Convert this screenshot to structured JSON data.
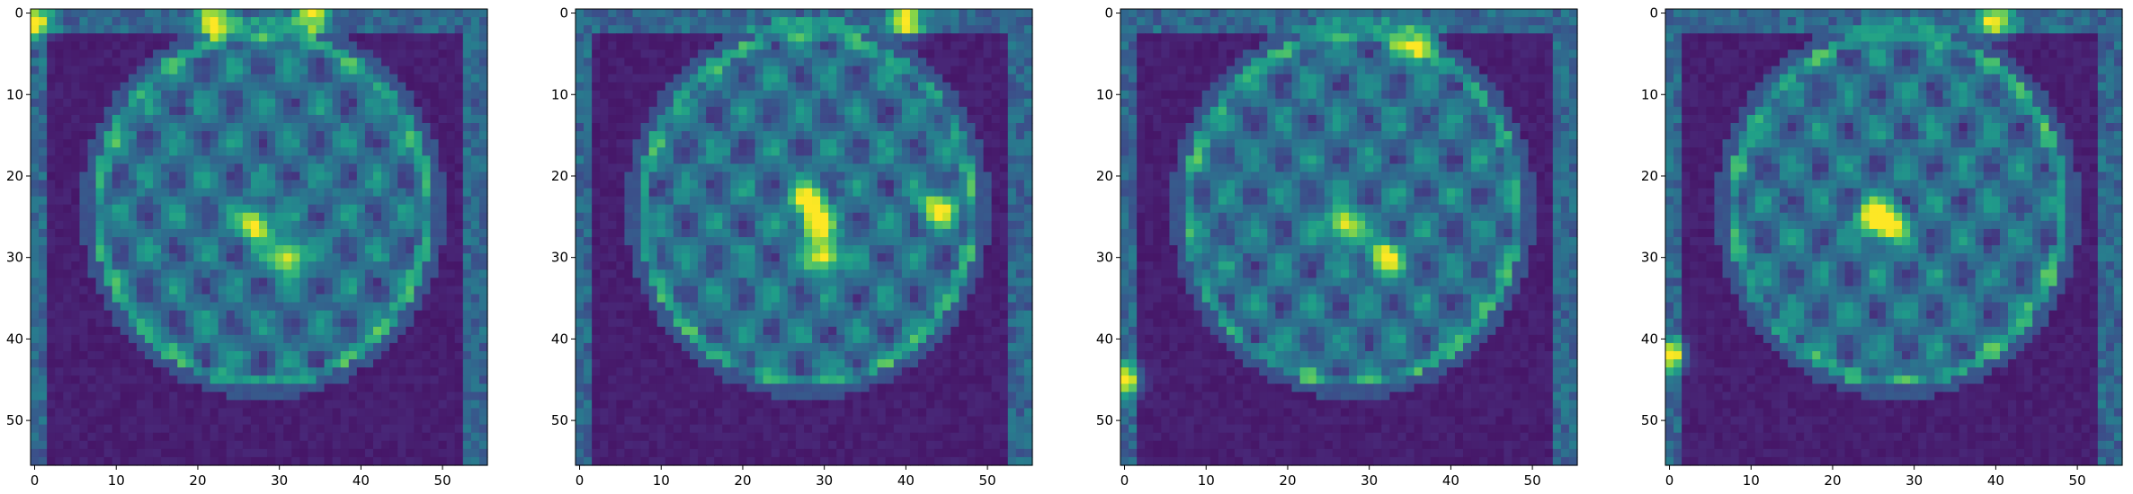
{
  "chart_data": [
    {
      "type": "heatmap",
      "colormap": "viridis",
      "grid": false,
      "xlim": [
        -0.5,
        55.5
      ],
      "ylim": [
        55.5,
        -0.5
      ],
      "xticks": [
        0,
        10,
        20,
        30,
        40,
        50
      ],
      "xtick_labels": [
        "0",
        "10",
        "20",
        "30",
        "40",
        "50"
      ],
      "yticks": [
        0,
        10,
        20,
        30,
        40,
        50
      ],
      "ytick_labels": [
        "0",
        "10",
        "20",
        "30",
        "40",
        "50"
      ],
      "image_size": [
        56,
        56
      ],
      "hotspots": [
        {
          "x": 27,
          "y": 26
        },
        {
          "x": 31,
          "y": 30
        },
        {
          "x": 22,
          "y": 1
        },
        {
          "x": 34,
          "y": 0
        },
        {
          "x": 0,
          "y": 1
        }
      ]
    },
    {
      "type": "heatmap",
      "colormap": "viridis",
      "grid": false,
      "xlim": [
        -0.5,
        55.5
      ],
      "ylim": [
        55.5,
        -0.5
      ],
      "xticks": [
        0,
        10,
        20,
        30,
        40,
        50
      ],
      "xtick_labels": [
        "0",
        "10",
        "20",
        "30",
        "40",
        "50"
      ],
      "yticks": [
        0,
        10,
        20,
        30,
        40,
        50
      ],
      "ytick_labels": [
        "0",
        "10",
        "20",
        "30",
        "40",
        "50"
      ],
      "image_size": [
        56,
        56
      ],
      "hotspots": [
        {
          "x": 28,
          "y": 23
        },
        {
          "x": 29,
          "y": 26
        },
        {
          "x": 30,
          "y": 30
        },
        {
          "x": 44,
          "y": 24
        },
        {
          "x": 40,
          "y": 1
        }
      ]
    },
    {
      "type": "heatmap",
      "colormap": "viridis",
      "grid": false,
      "xlim": [
        -0.5,
        55.5
      ],
      "ylim": [
        55.5,
        -0.5
      ],
      "xticks": [
        0,
        10,
        20,
        30,
        40,
        50
      ],
      "xtick_labels": [
        "0",
        "10",
        "20",
        "30",
        "40",
        "50"
      ],
      "yticks": [
        0,
        10,
        20,
        30,
        40,
        50
      ],
      "ytick_labels": [
        "0",
        "10",
        "20",
        "30",
        "40",
        "50"
      ],
      "image_size": [
        56,
        56
      ],
      "hotspots": [
        {
          "x": 27,
          "y": 26
        },
        {
          "x": 36,
          "y": 4
        },
        {
          "x": 32,
          "y": 30
        },
        {
          "x": 0,
          "y": 45
        }
      ]
    },
    {
      "type": "heatmap",
      "colormap": "viridis",
      "grid": false,
      "xlim": [
        -0.5,
        55.5
      ],
      "ylim": [
        55.5,
        -0.5
      ],
      "xticks": [
        0,
        10,
        20,
        30,
        40,
        50
      ],
      "xtick_labels": [
        "0",
        "10",
        "20",
        "30",
        "40",
        "50"
      ],
      "yticks": [
        0,
        10,
        20,
        30,
        40,
        50
      ],
      "ytick_labels": [
        "0",
        "10",
        "20",
        "30",
        "40",
        "50"
      ],
      "image_size": [
        56,
        56
      ],
      "hotspots": [
        {
          "x": 27,
          "y": 26
        },
        {
          "x": 25,
          "y": 25
        },
        {
          "x": 0,
          "y": 42
        },
        {
          "x": 40,
          "y": 1
        }
      ]
    }
  ]
}
